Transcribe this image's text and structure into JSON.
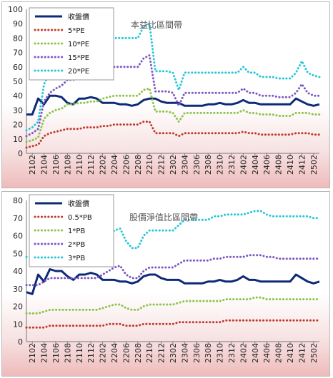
{
  "chart_data": [
    {
      "type": "line",
      "title": "本益比區間帶",
      "x": [
        "2101",
        "2102",
        "2103",
        "2104",
        "2105",
        "2106",
        "2107",
        "2108",
        "2109",
        "2110",
        "2111",
        "2112",
        "2201",
        "2202",
        "2203",
        "2204",
        "2205",
        "2206",
        "2207",
        "2208",
        "2209",
        "2210",
        "2211",
        "2212",
        "2301",
        "2302",
        "2303",
        "2304",
        "2305",
        "2306",
        "2307",
        "2308",
        "2309",
        "2310",
        "2311",
        "2312",
        "2401",
        "2402",
        "2403",
        "2404",
        "2405",
        "2406",
        "2407",
        "2408",
        "2409",
        "2410",
        "2411",
        "2412",
        "2501",
        "2502",
        "2503"
      ],
      "x_tick_labels": [
        "2102",
        "2104",
        "2106",
        "2108",
        "2110",
        "2112",
        "2202",
        "2204",
        "2206",
        "2208",
        "2210",
        "2212",
        "2302",
        "2304",
        "2306",
        "2308",
        "2310",
        "2312",
        "2402",
        "2404",
        "2406",
        "2408",
        "2410",
        "2412",
        "2502"
      ],
      "ylim": [
        0,
        100
      ],
      "y_ticks": [
        0,
        10,
        20,
        30,
        40,
        50,
        60,
        70,
        80,
        90,
        100
      ],
      "legend_position": "top-left",
      "series": [
        {
          "name": "收盤價",
          "style": "solid",
          "color": "#0d2a78",
          "values": [
            27,
            27,
            38,
            34,
            40,
            40,
            39,
            35,
            34,
            38,
            38,
            39,
            38,
            35,
            35,
            35,
            34,
            34,
            33,
            34,
            37,
            38,
            38,
            36,
            35,
            35,
            35,
            33,
            33,
            33,
            33,
            34,
            34,
            35,
            34,
            34,
            35,
            37,
            35,
            35,
            34,
            34,
            34,
            34,
            34,
            34,
            38,
            36,
            34,
            33,
            34
          ]
        },
        {
          "name": "5*PE",
          "style": "dotted",
          "color": "#c0392b",
          "values": [
            4,
            5,
            6,
            12,
            14,
            15,
            16,
            17,
            17,
            17,
            18,
            18,
            18,
            19,
            19,
            20,
            20,
            20,
            20,
            20,
            22,
            22,
            14,
            14,
            14,
            14,
            12,
            14,
            14,
            14,
            14,
            14,
            14,
            14,
            14,
            14,
            14,
            15,
            14,
            14,
            13,
            13,
            13,
            13,
            13,
            13,
            14,
            14,
            14,
            13,
            13
          ]
        },
        {
          "name": "10*PE",
          "style": "dotted",
          "color": "#8bc34a",
          "values": [
            8,
            9,
            11,
            24,
            28,
            30,
            31,
            34,
            34,
            35,
            35,
            36,
            36,
            38,
            39,
            40,
            40,
            40,
            40,
            40,
            44,
            45,
            29,
            29,
            29,
            28,
            22,
            28,
            28,
            28,
            28,
            28,
            28,
            28,
            28,
            28,
            28,
            30,
            28,
            28,
            27,
            27,
            27,
            26,
            26,
            26,
            28,
            28,
            28,
            27,
            27
          ]
        },
        {
          "name": "15*PE",
          "style": "dotted",
          "color": "#7e57c2",
          "values": [
            12,
            14,
            17,
            36,
            42,
            45,
            47,
            51,
            51,
            53,
            53,
            54,
            54,
            57,
            58,
            60,
            60,
            60,
            60,
            60,
            66,
            68,
            43,
            43,
            43,
            42,
            33,
            42,
            42,
            42,
            42,
            42,
            42,
            42,
            42,
            42,
            42,
            45,
            42,
            42,
            40,
            40,
            40,
            39,
            39,
            39,
            42,
            48,
            42,
            40,
            40
          ]
        },
        {
          "name": "20*PE",
          "style": "dotted",
          "color": "#26c6da",
          "values": [
            16,
            18,
            22,
            48,
            56,
            60,
            63,
            68,
            68,
            71,
            71,
            72,
            72,
            76,
            77,
            80,
            80,
            80,
            80,
            80,
            88,
            90,
            57,
            57,
            57,
            56,
            44,
            56,
            56,
            56,
            56,
            56,
            56,
            56,
            56,
            56,
            56,
            60,
            56,
            56,
            53,
            53,
            53,
            52,
            52,
            52,
            56,
            64,
            56,
            54,
            53
          ]
        }
      ]
    },
    {
      "type": "line",
      "title": "股價淨值比區間帶",
      "x": [
        "2101",
        "2102",
        "2103",
        "2104",
        "2105",
        "2106",
        "2107",
        "2108",
        "2109",
        "2110",
        "2111",
        "2112",
        "2201",
        "2202",
        "2203",
        "2204",
        "2205",
        "2206",
        "2207",
        "2208",
        "2209",
        "2210",
        "2211",
        "2212",
        "2301",
        "2302",
        "2303",
        "2304",
        "2305",
        "2306",
        "2307",
        "2308",
        "2309",
        "2310",
        "2311",
        "2312",
        "2401",
        "2402",
        "2403",
        "2404",
        "2405",
        "2406",
        "2407",
        "2408",
        "2409",
        "2410",
        "2411",
        "2412",
        "2501",
        "2502",
        "2503"
      ],
      "x_tick_labels": [
        "2102",
        "2104",
        "2106",
        "2108",
        "2110",
        "2112",
        "2202",
        "2204",
        "2206",
        "2208",
        "2210",
        "2212",
        "2302",
        "2304",
        "2306",
        "2308",
        "2310",
        "2312",
        "2402",
        "2404",
        "2406",
        "2408",
        "2410",
        "2412",
        "2502"
      ],
      "ylim": [
        0,
        80
      ],
      "y_ticks": [
        0,
        10,
        20,
        30,
        40,
        50,
        60,
        70,
        80
      ],
      "legend_position": "top-left",
      "series": [
        {
          "name": "收盤價",
          "style": "solid",
          "color": "#0d2a78",
          "values": [
            28,
            27,
            38,
            34,
            41,
            40,
            40,
            37,
            35,
            38,
            38,
            39,
            38,
            35,
            35,
            35,
            34,
            34,
            33,
            34,
            37,
            38,
            38,
            36,
            35,
            35,
            35,
            33,
            33,
            33,
            33,
            34,
            34,
            35,
            34,
            34,
            35,
            37,
            35,
            35,
            34,
            34,
            34,
            34,
            34,
            34,
            38,
            36,
            34,
            33,
            34
          ]
        },
        {
          "name": "0.5*PB",
          "style": "dotted",
          "color": "#c0392b",
          "values": [
            8,
            8,
            8,
            8,
            9,
            9,
            9,
            9,
            9,
            9,
            9,
            9,
            9,
            9,
            10,
            10,
            10,
            9,
            9,
            9,
            10,
            10,
            10,
            10,
            10,
            10,
            11,
            11,
            11,
            11,
            11,
            11,
            11,
            11,
            12,
            12,
            12,
            12,
            12,
            12,
            12,
            12,
            12,
            12,
            12,
            12,
            12,
            12,
            12,
            12,
            12
          ]
        },
        {
          "name": "1*PB",
          "style": "dotted",
          "color": "#8bc34a",
          "values": [
            16,
            16,
            16,
            17,
            18,
            18,
            18,
            18,
            18,
            18,
            18,
            18,
            18,
            19,
            20,
            21,
            21,
            19,
            18,
            18,
            20,
            21,
            21,
            21,
            21,
            21,
            22,
            23,
            23,
            23,
            23,
            23,
            23,
            23,
            24,
            24,
            24,
            24,
            24,
            25,
            25,
            24,
            24,
            24,
            24,
            24,
            24,
            24,
            24,
            24,
            24
          ]
        },
        {
          "name": "2*PB",
          "style": "dotted",
          "color": "#7e57c2",
          "values": [
            32,
            32,
            32,
            34,
            36,
            36,
            36,
            36,
            36,
            36,
            36,
            36,
            36,
            38,
            40,
            42,
            43,
            38,
            36,
            36,
            40,
            42,
            42,
            42,
            42,
            42,
            44,
            46,
            46,
            46,
            46,
            46,
            47,
            47,
            48,
            48,
            48,
            48,
            49,
            49,
            49,
            48,
            48,
            47,
            47,
            47,
            47,
            47,
            47,
            47,
            47
          ]
        },
        {
          "name": "3*PB",
          "style": "dotted",
          "color": "#26c6da",
          "values": [
            48,
            48,
            48,
            51,
            54,
            54,
            54,
            54,
            54,
            54,
            54,
            54,
            54,
            57,
            60,
            63,
            64,
            57,
            53,
            53,
            60,
            63,
            63,
            63,
            63,
            63,
            66,
            69,
            69,
            69,
            69,
            69,
            71,
            71,
            72,
            72,
            72,
            72,
            73,
            74,
            74,
            72,
            71,
            71,
            71,
            71,
            71,
            71,
            71,
            70,
            70
          ]
        }
      ]
    }
  ]
}
